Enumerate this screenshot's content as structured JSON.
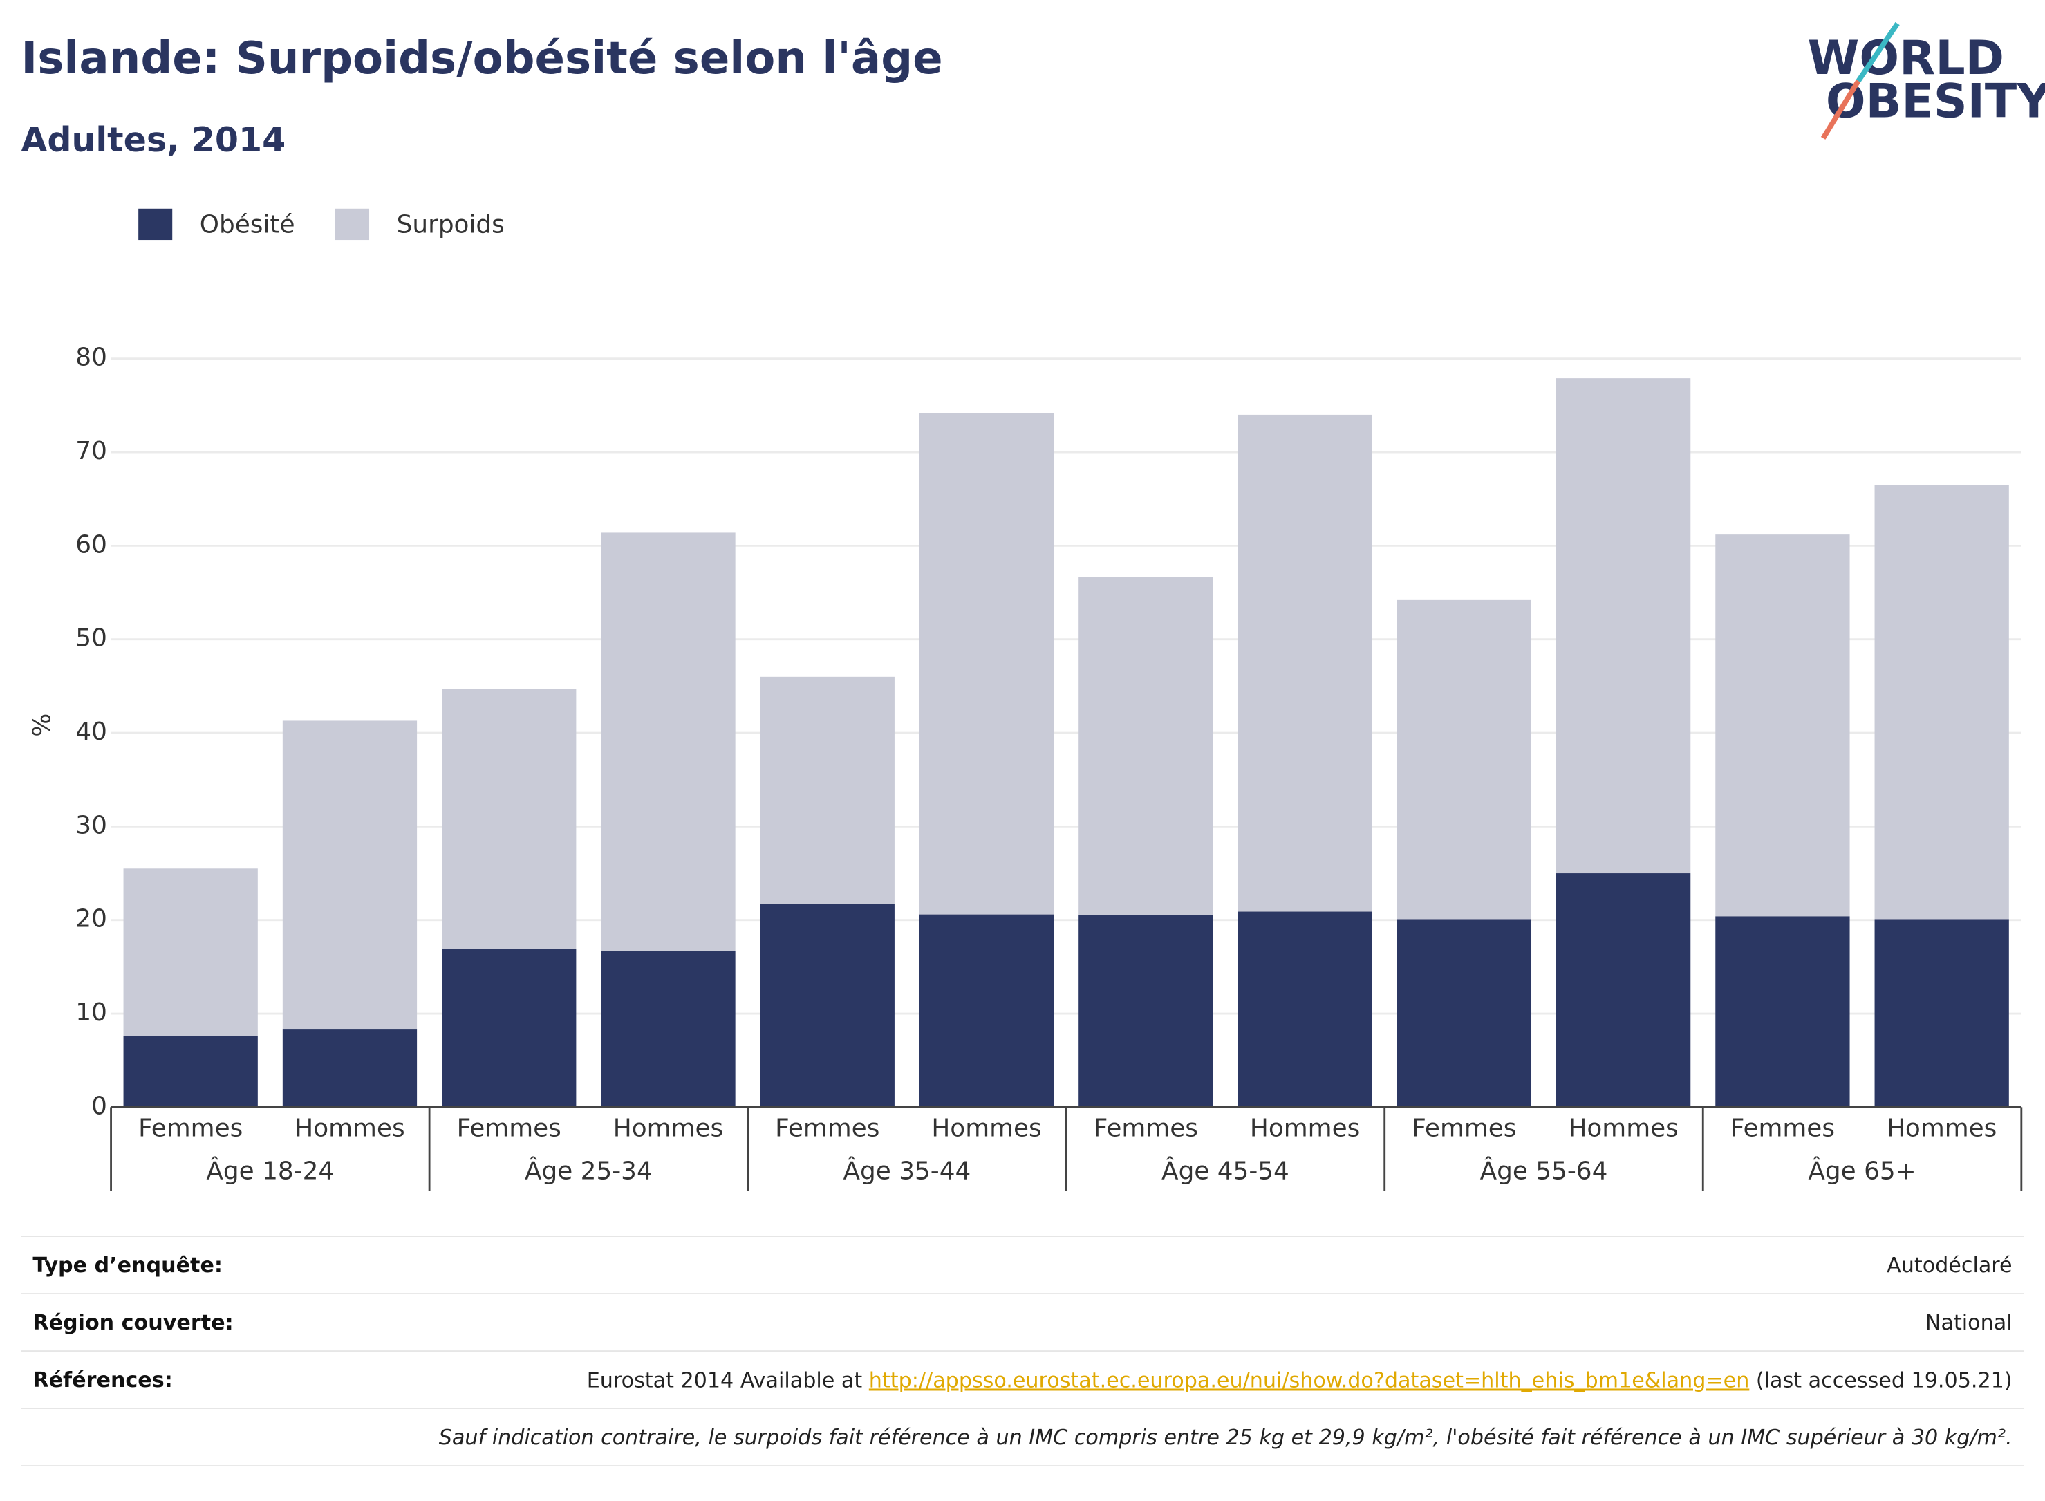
{
  "chart_data": {
    "type": "bar",
    "stacked": true,
    "title": "Islande: Surpoids/obésité selon l'âge",
    "subtitle": "Adultes, 2014",
    "ylabel": "%",
    "categories": [
      "Femmes",
      "Hommes",
      "Femmes",
      "Hommes",
      "Femmes",
      "Hommes",
      "Femmes",
      "Hommes",
      "Femmes",
      "Hommes",
      "Femmes",
      "Hommes"
    ],
    "groups": [
      "Âge 18-24",
      "Âge 25-34",
      "Âge 35-44",
      "Âge 45-54",
      "Âge 55-64",
      "Âge 65+"
    ],
    "series": [
      {
        "name": "Obésité",
        "color": "#2b3763",
        "values": [
          7.6,
          8.3,
          16.9,
          16.7,
          21.7,
          20.6,
          20.5,
          20.9,
          20.1,
          25.0,
          20.4,
          20.1
        ]
      },
      {
        "name": "Surpoids",
        "color": "#c9cbd7",
        "values": [
          17.9,
          33.0,
          27.8,
          44.7,
          24.3,
          53.6,
          36.2,
          53.1,
          34.1,
          52.9,
          40.8,
          46.4
        ]
      }
    ],
    "ylim": [
      0,
      80
    ],
    "yticks": [
      0,
      10,
      20,
      30,
      40,
      50,
      60,
      70,
      80
    ],
    "grid": true,
    "legend": "top-left"
  },
  "logo": {
    "line1": "WORLD",
    "line2": "OBESITY"
  },
  "table": {
    "rows": [
      [
        "Type d’enquête:",
        "Autodéclaré"
      ],
      [
        "Région couverte:",
        "National"
      ],
      [
        "Références:",
        [
          "Eurostat 2014 Available at ",
          "http://appsso.eurostat.ec.europa.eu/nui/show.do?dataset=hlth_ehis_bm1e&lang=en",
          " (last accessed 19.05.21)"
        ]
      ]
    ],
    "footnote": "Sauf indication contraire, le surpoids fait référence à un IMC compris entre 25 kg et 29,9 kg/m², l'obésité fait référence à un IMC supérieur à 30 kg/m²."
  }
}
